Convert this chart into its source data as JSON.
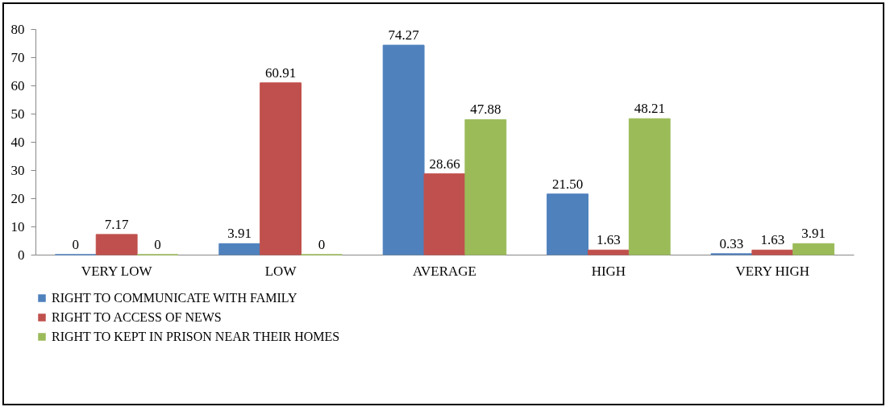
{
  "chart_data": {
    "type": "bar",
    "categories": [
      "VERY LOW",
      "LOW",
      "AVERAGE",
      "HIGH",
      "VERY HIGH"
    ],
    "series": [
      {
        "name": "RIGHT TO COMMUNICATE WITH FAMILY",
        "color": "#4f81bd",
        "values": [
          0,
          3.91,
          74.27,
          21.5,
          0.33
        ],
        "value_labels": [
          "0",
          "3.91",
          "74.27",
          "21.50",
          "0.33"
        ]
      },
      {
        "name": "RIGHT TO ACCESS OF NEWS",
        "color": "#c0504d",
        "values": [
          7.17,
          60.91,
          28.66,
          1.63,
          1.63
        ],
        "value_labels": [
          "7.17",
          "60.91",
          "28.66",
          "1.63",
          "1.63"
        ]
      },
      {
        "name": "RIGHT TO KEPT IN PRISON NEAR THEIR HOMES",
        "color": "#9bbb59",
        "values": [
          0,
          0,
          47.88,
          48.21,
          3.91
        ],
        "value_labels": [
          "0",
          "0",
          "47.88",
          "48.21",
          "3.91"
        ]
      }
    ],
    "ylim": [
      0,
      80
    ],
    "yticks": [
      0,
      10,
      20,
      30,
      40,
      50,
      60,
      70,
      80
    ],
    "grid": false,
    "legend": "bottom"
  }
}
